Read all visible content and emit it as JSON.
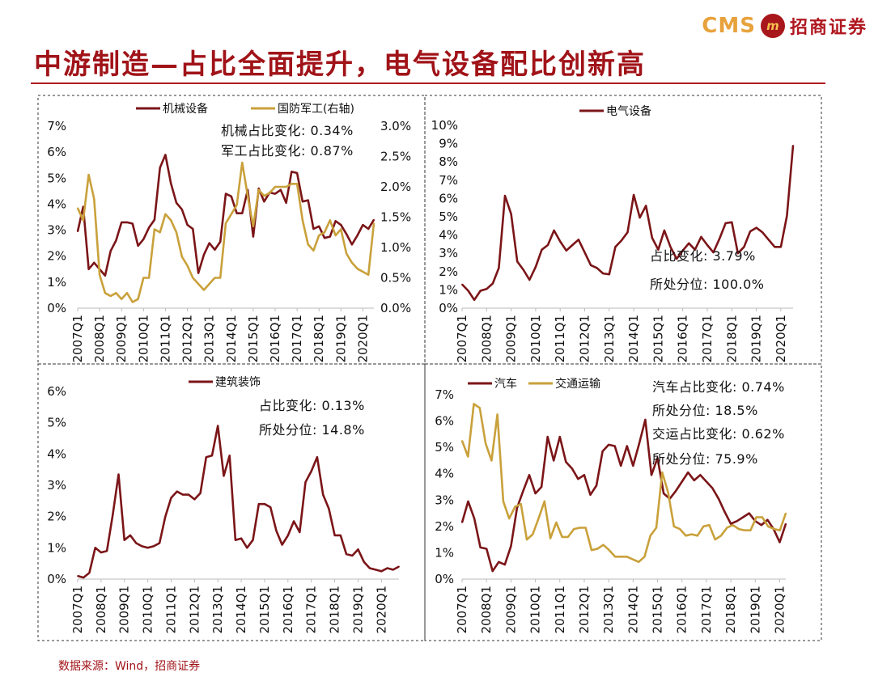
{
  "header": {
    "logo_text": "CMS",
    "logo_mark": "m",
    "logo_cn": "招商证券",
    "title": "中游制造—占比全面提升，电气设备配比创新高"
  },
  "footer": {
    "source": "数据来源：Wind，招商证券"
  },
  "colors": {
    "dark_red": "#7b1518",
    "gold": "#c9a13b",
    "title_red": "#a01318"
  },
  "chart_data": [
    {
      "id": "machinery",
      "type": "line",
      "x_labels": [
        "2007Q1",
        "2008Q1",
        "2009Q1",
        "2010Q1",
        "2011Q1",
        "2012Q1",
        "2013Q1",
        "2014Q1",
        "2015Q1",
        "2016Q1",
        "2017Q1",
        "2018Q1",
        "2019Q1",
        "2020Q1"
      ],
      "ylim": [
        0,
        7
      ],
      "yticks": [
        "0%",
        "1%",
        "2%",
        "3%",
        "4%",
        "5%",
        "6%",
        "7%"
      ],
      "y2lim": [
        0,
        3
      ],
      "y2ticks": [
        "0.0%",
        "0.5%",
        "1.0%",
        "1.5%",
        "2.0%",
        "2.5%",
        "3.0%"
      ],
      "legend": [
        "机械设备",
        "国防军工(右轴)"
      ],
      "annotations": [
        "机械占比变化: 0.34%",
        "军工占比变化: 0.87%"
      ],
      "series": [
        {
          "name": "机械设备",
          "axis": "left",
          "values": [
            2.95,
            3.9,
            1.5,
            1.75,
            1.5,
            1.25,
            2.2,
            2.6,
            3.3,
            3.3,
            3.25,
            2.4,
            2.65,
            3.1,
            3.4,
            5.4,
            5.9,
            4.8,
            4.05,
            3.8,
            3.2,
            3.05,
            1.35,
            2.05,
            2.5,
            2.25,
            2.55,
            4.4,
            4.3,
            3.65,
            3.65,
            4.55,
            2.75,
            4.6,
            4.1,
            4.45,
            4.4,
            4.55,
            4.05,
            5.25,
            5.2,
            4.1,
            4.15,
            3.05,
            3.15,
            2.7,
            2.75,
            3.35,
            3.2,
            2.85,
            2.45,
            2.8,
            3.2,
            3.05,
            3.4
          ]
        },
        {
          "name": "国防军工(右轴)",
          "axis": "right",
          "values": [
            1.65,
            1.45,
            2.2,
            1.8,
            0.55,
            0.25,
            0.2,
            0.25,
            0.15,
            0.25,
            0.1,
            0.15,
            0.5,
            0.5,
            1.3,
            1.25,
            1.55,
            1.45,
            1.25,
            0.85,
            0.7,
            0.5,
            0.4,
            0.3,
            0.4,
            0.5,
            0.5,
            1.4,
            1.55,
            1.7,
            2.4,
            1.85,
            1.35,
            1.95,
            1.85,
            1.9,
            2.0,
            2.0,
            2.0,
            2.05,
            2.05,
            1.45,
            1.05,
            0.95,
            1.2,
            1.25,
            1.45,
            1.2,
            1.3,
            0.9,
            0.75,
            0.65,
            0.6,
            0.55,
            1.4
          ]
        }
      ]
    },
    {
      "id": "electric",
      "type": "line",
      "x_labels": [
        "2007Q1",
        "2008Q1",
        "2009Q1",
        "2010Q1",
        "2011Q1",
        "2012Q1",
        "2013Q1",
        "2014Q1",
        "2015Q1",
        "2016Q1",
        "2017Q1",
        "2018Q1",
        "2019Q1",
        "2020Q1"
      ],
      "ylim": [
        0,
        10
      ],
      "yticks": [
        "0%",
        "1%",
        "2%",
        "3%",
        "4%",
        "5%",
        "6%",
        "7%",
        "8%",
        "9%",
        "10%"
      ],
      "legend": [
        "电气设备"
      ],
      "annotations": [
        "占比变化: 3.79%",
        "所处分位: 100.0%"
      ],
      "series": [
        {
          "name": "电气设备",
          "values": [
            1.3,
            0.95,
            0.45,
            0.95,
            1.05,
            1.35,
            2.2,
            6.15,
            5.15,
            2.55,
            2.1,
            1.55,
            2.25,
            3.2,
            3.45,
            4.25,
            3.65,
            3.15,
            3.45,
            3.75,
            3.05,
            2.35,
            2.2,
            1.9,
            1.85,
            3.35,
            3.7,
            4.15,
            6.2,
            4.95,
            5.6,
            3.85,
            3.2,
            4.25,
            3.35,
            2.7,
            3.15,
            3.55,
            3.2,
            3.9,
            3.45,
            3.05,
            3.8,
            4.65,
            4.7,
            3.0,
            3.35,
            4.2,
            4.4,
            4.15,
            3.75,
            3.35,
            3.35,
            5.05,
            8.9
          ]
        }
      ]
    },
    {
      "id": "construction",
      "type": "line",
      "x_labels": [
        "2007Q1",
        "2008Q1",
        "2009Q1",
        "2010Q1",
        "2011Q1",
        "2012Q1",
        "2013Q1",
        "2014Q1",
        "2015Q1",
        "2016Q1",
        "2017Q1",
        "2018Q1",
        "2019Q1",
        "2020Q1"
      ],
      "ylim": [
        0,
        6
      ],
      "yticks": [
        "0%",
        "1%",
        "2%",
        "3%",
        "4%",
        "5%",
        "6%"
      ],
      "legend": [
        "建筑装饰"
      ],
      "annotations": [
        "占比变化: 0.13%",
        "所处分位: 14.8%"
      ],
      "series": [
        {
          "name": "建筑装饰",
          "values": [
            0.1,
            0.05,
            0.2,
            1.0,
            0.85,
            0.9,
            2.05,
            3.35,
            1.25,
            1.4,
            1.15,
            1.05,
            1.0,
            1.05,
            1.15,
            2.0,
            2.6,
            2.8,
            2.7,
            2.7,
            2.55,
            2.75,
            3.9,
            3.95,
            4.9,
            3.3,
            3.95,
            1.25,
            1.3,
            1.0,
            1.25,
            2.4,
            2.4,
            2.3,
            1.55,
            1.1,
            1.4,
            1.85,
            1.5,
            3.1,
            3.45,
            3.9,
            2.7,
            2.25,
            1.4,
            1.4,
            0.8,
            0.75,
            0.95,
            0.55,
            0.35,
            0.3,
            0.25,
            0.35,
            0.3,
            0.4
          ]
        }
      ]
    },
    {
      "id": "auto_transport",
      "type": "line",
      "x_labels": [
        "2007Q1",
        "2008Q1",
        "2009Q1",
        "2010Q1",
        "2011Q1",
        "2012Q1",
        "2013Q1",
        "2014Q1",
        "2015Q1",
        "2016Q1",
        "2017Q1",
        "2018Q1",
        "2019Q1",
        "2020Q1"
      ],
      "ylim": [
        0,
        7
      ],
      "yticks": [
        "0%",
        "1%",
        "2%",
        "3%",
        "4%",
        "5%",
        "6%",
        "7%"
      ],
      "legend": [
        "汽车",
        "交通运输"
      ],
      "annotations": [
        "汽车占比变化: 0.74%",
        "所处分位: 18.5%",
        "交运占比变化: 0.62%",
        "所处分位: 75.9%"
      ],
      "series": [
        {
          "name": "汽车",
          "values": [
            2.15,
            2.95,
            2.3,
            1.2,
            1.15,
            0.3,
            0.65,
            0.55,
            1.25,
            2.7,
            3.35,
            3.95,
            3.25,
            3.5,
            5.4,
            4.5,
            5.4,
            4.45,
            4.2,
            3.8,
            3.95,
            3.2,
            3.55,
            4.85,
            5.1,
            5.05,
            4.3,
            5.05,
            4.3,
            5.15,
            6.05,
            3.95,
            4.6,
            3.25,
            3.05,
            3.35,
            3.7,
            4.05,
            3.75,
            3.95,
            3.7,
            3.45,
            3.05,
            2.55,
            2.1,
            2.2,
            2.35,
            2.5,
            2.2,
            2.05,
            2.25,
            1.9,
            1.4,
            2.1
          ]
        },
        {
          "name": "交通运输",
          "values": [
            5.25,
            4.65,
            6.65,
            6.5,
            5.15,
            4.5,
            6.25,
            2.95,
            2.3,
            2.75,
            2.85,
            1.5,
            1.7,
            2.3,
            2.95,
            1.55,
            2.15,
            1.6,
            1.6,
            1.9,
            1.95,
            1.95,
            1.1,
            1.15,
            1.3,
            1.1,
            0.85,
            0.85,
            0.85,
            0.75,
            0.65,
            0.85,
            1.65,
            1.95,
            4.05,
            3.3,
            2.0,
            1.9,
            1.65,
            1.7,
            1.65,
            2.0,
            2.05,
            1.5,
            1.65,
            1.95,
            2.05,
            1.9,
            1.85,
            1.85,
            2.35,
            2.35,
            2.0,
            1.9,
            1.85,
            2.5
          ]
        }
      ]
    }
  ]
}
